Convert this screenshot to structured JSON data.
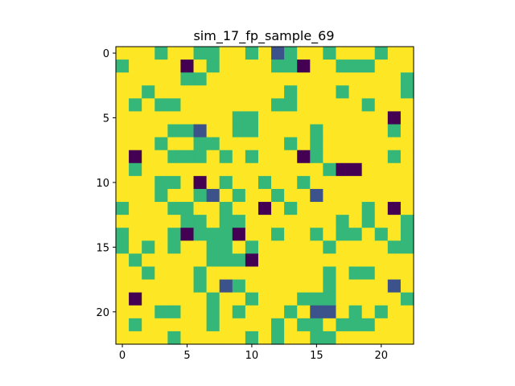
{
  "chart_data": {
    "type": "heatmap",
    "title": "sim_17_fp_sample_69",
    "xlabel": "",
    "ylabel": "",
    "rows": 23,
    "cols": 23,
    "x_ticks": [
      0,
      5,
      10,
      15,
      20
    ],
    "y_ticks": [
      0,
      5,
      10,
      15,
      20
    ],
    "xlim": [
      -0.5,
      22.5
    ],
    "ylim": [
      22.5,
      -0.5
    ],
    "grid": false,
    "legend": "none",
    "colormap": "viridis",
    "value_colors": {
      "0": "#440154",
      "1": "#3b528b",
      "2": "#35b779",
      "3": "#fde725"
    },
    "matrix": [
      [
        3,
        3,
        3,
        2,
        3,
        3,
        2,
        2,
        3,
        3,
        2,
        3,
        1,
        2,
        3,
        3,
        2,
        3,
        3,
        3,
        2,
        3,
        3
      ],
      [
        2,
        3,
        3,
        3,
        3,
        0,
        3,
        2,
        3,
        3,
        3,
        3,
        2,
        2,
        0,
        3,
        3,
        2,
        2,
        2,
        3,
        3,
        3
      ],
      [
        3,
        3,
        3,
        3,
        3,
        2,
        2,
        3,
        3,
        3,
        3,
        3,
        3,
        3,
        3,
        3,
        3,
        3,
        3,
        3,
        3,
        3,
        2
      ],
      [
        3,
        3,
        2,
        3,
        3,
        3,
        3,
        3,
        3,
        3,
        3,
        3,
        3,
        2,
        3,
        3,
        3,
        2,
        3,
        3,
        3,
        3,
        2
      ],
      [
        3,
        2,
        3,
        2,
        2,
        3,
        3,
        3,
        3,
        3,
        3,
        3,
        2,
        2,
        3,
        3,
        3,
        3,
        3,
        2,
        3,
        3,
        3
      ],
      [
        3,
        3,
        3,
        3,
        3,
        3,
        3,
        3,
        3,
        2,
        2,
        3,
        3,
        3,
        3,
        3,
        3,
        3,
        3,
        3,
        3,
        0,
        3
      ],
      [
        3,
        3,
        3,
        3,
        2,
        2,
        1,
        3,
        3,
        2,
        2,
        3,
        3,
        3,
        3,
        2,
        3,
        3,
        3,
        3,
        3,
        2,
        3
      ],
      [
        3,
        3,
        3,
        2,
        3,
        3,
        2,
        2,
        3,
        3,
        3,
        3,
        3,
        2,
        3,
        2,
        3,
        3,
        3,
        3,
        3,
        3,
        3
      ],
      [
        3,
        0,
        3,
        3,
        2,
        2,
        2,
        3,
        2,
        3,
        2,
        3,
        3,
        3,
        0,
        2,
        3,
        3,
        3,
        3,
        3,
        2,
        3
      ],
      [
        3,
        2,
        3,
        3,
        3,
        3,
        3,
        3,
        3,
        3,
        3,
        3,
        3,
        3,
        3,
        3,
        2,
        0,
        0,
        3,
        3,
        3,
        3
      ],
      [
        3,
        3,
        3,
        2,
        2,
        3,
        0,
        3,
        2,
        3,
        3,
        2,
        3,
        3,
        2,
        3,
        3,
        3,
        3,
        3,
        3,
        3,
        3
      ],
      [
        3,
        3,
        3,
        2,
        3,
        3,
        2,
        1,
        3,
        2,
        3,
        3,
        2,
        3,
        3,
        1,
        3,
        3,
        3,
        3,
        3,
        3,
        3
      ],
      [
        2,
        3,
        3,
        3,
        2,
        2,
        3,
        3,
        2,
        3,
        3,
        0,
        3,
        2,
        3,
        3,
        3,
        3,
        3,
        2,
        3,
        0,
        3
      ],
      [
        3,
        3,
        3,
        3,
        3,
        2,
        2,
        3,
        2,
        2,
        3,
        3,
        3,
        3,
        3,
        3,
        3,
        2,
        3,
        2,
        3,
        3,
        2
      ],
      [
        2,
        3,
        3,
        3,
        2,
        0,
        2,
        2,
        2,
        0,
        3,
        3,
        2,
        3,
        3,
        2,
        3,
        2,
        2,
        3,
        2,
        3,
        2
      ],
      [
        2,
        3,
        2,
        3,
        2,
        3,
        3,
        2,
        2,
        3,
        2,
        3,
        3,
        3,
        3,
        3,
        2,
        3,
        3,
        3,
        3,
        2,
        2
      ],
      [
        3,
        2,
        3,
        3,
        3,
        3,
        3,
        2,
        2,
        2,
        0,
        3,
        3,
        3,
        3,
        3,
        3,
        3,
        3,
        3,
        3,
        3,
        3
      ],
      [
        3,
        3,
        2,
        3,
        3,
        3,
        2,
        3,
        3,
        3,
        3,
        3,
        3,
        3,
        3,
        3,
        2,
        3,
        2,
        2,
        3,
        3,
        3
      ],
      [
        3,
        3,
        3,
        3,
        3,
        3,
        2,
        3,
        1,
        2,
        3,
        3,
        3,
        3,
        3,
        3,
        2,
        3,
        3,
        3,
        3,
        1,
        3
      ],
      [
        3,
        0,
        3,
        3,
        3,
        3,
        3,
        2,
        3,
        3,
        2,
        3,
        3,
        3,
        2,
        2,
        2,
        3,
        3,
        3,
        3,
        3,
        2
      ],
      [
        3,
        3,
        3,
        2,
        2,
        3,
        3,
        2,
        3,
        2,
        3,
        3,
        3,
        2,
        3,
        1,
        1,
        3,
        2,
        3,
        2,
        3,
        3
      ],
      [
        3,
        2,
        3,
        3,
        3,
        3,
        3,
        2,
        3,
        3,
        3,
        3,
        2,
        3,
        2,
        2,
        3,
        2,
        2,
        2,
        3,
        3,
        3
      ],
      [
        3,
        3,
        3,
        3,
        2,
        3,
        3,
        3,
        3,
        3,
        2,
        3,
        2,
        3,
        3,
        2,
        2,
        3,
        3,
        3,
        3,
        3,
        3
      ]
    ]
  }
}
